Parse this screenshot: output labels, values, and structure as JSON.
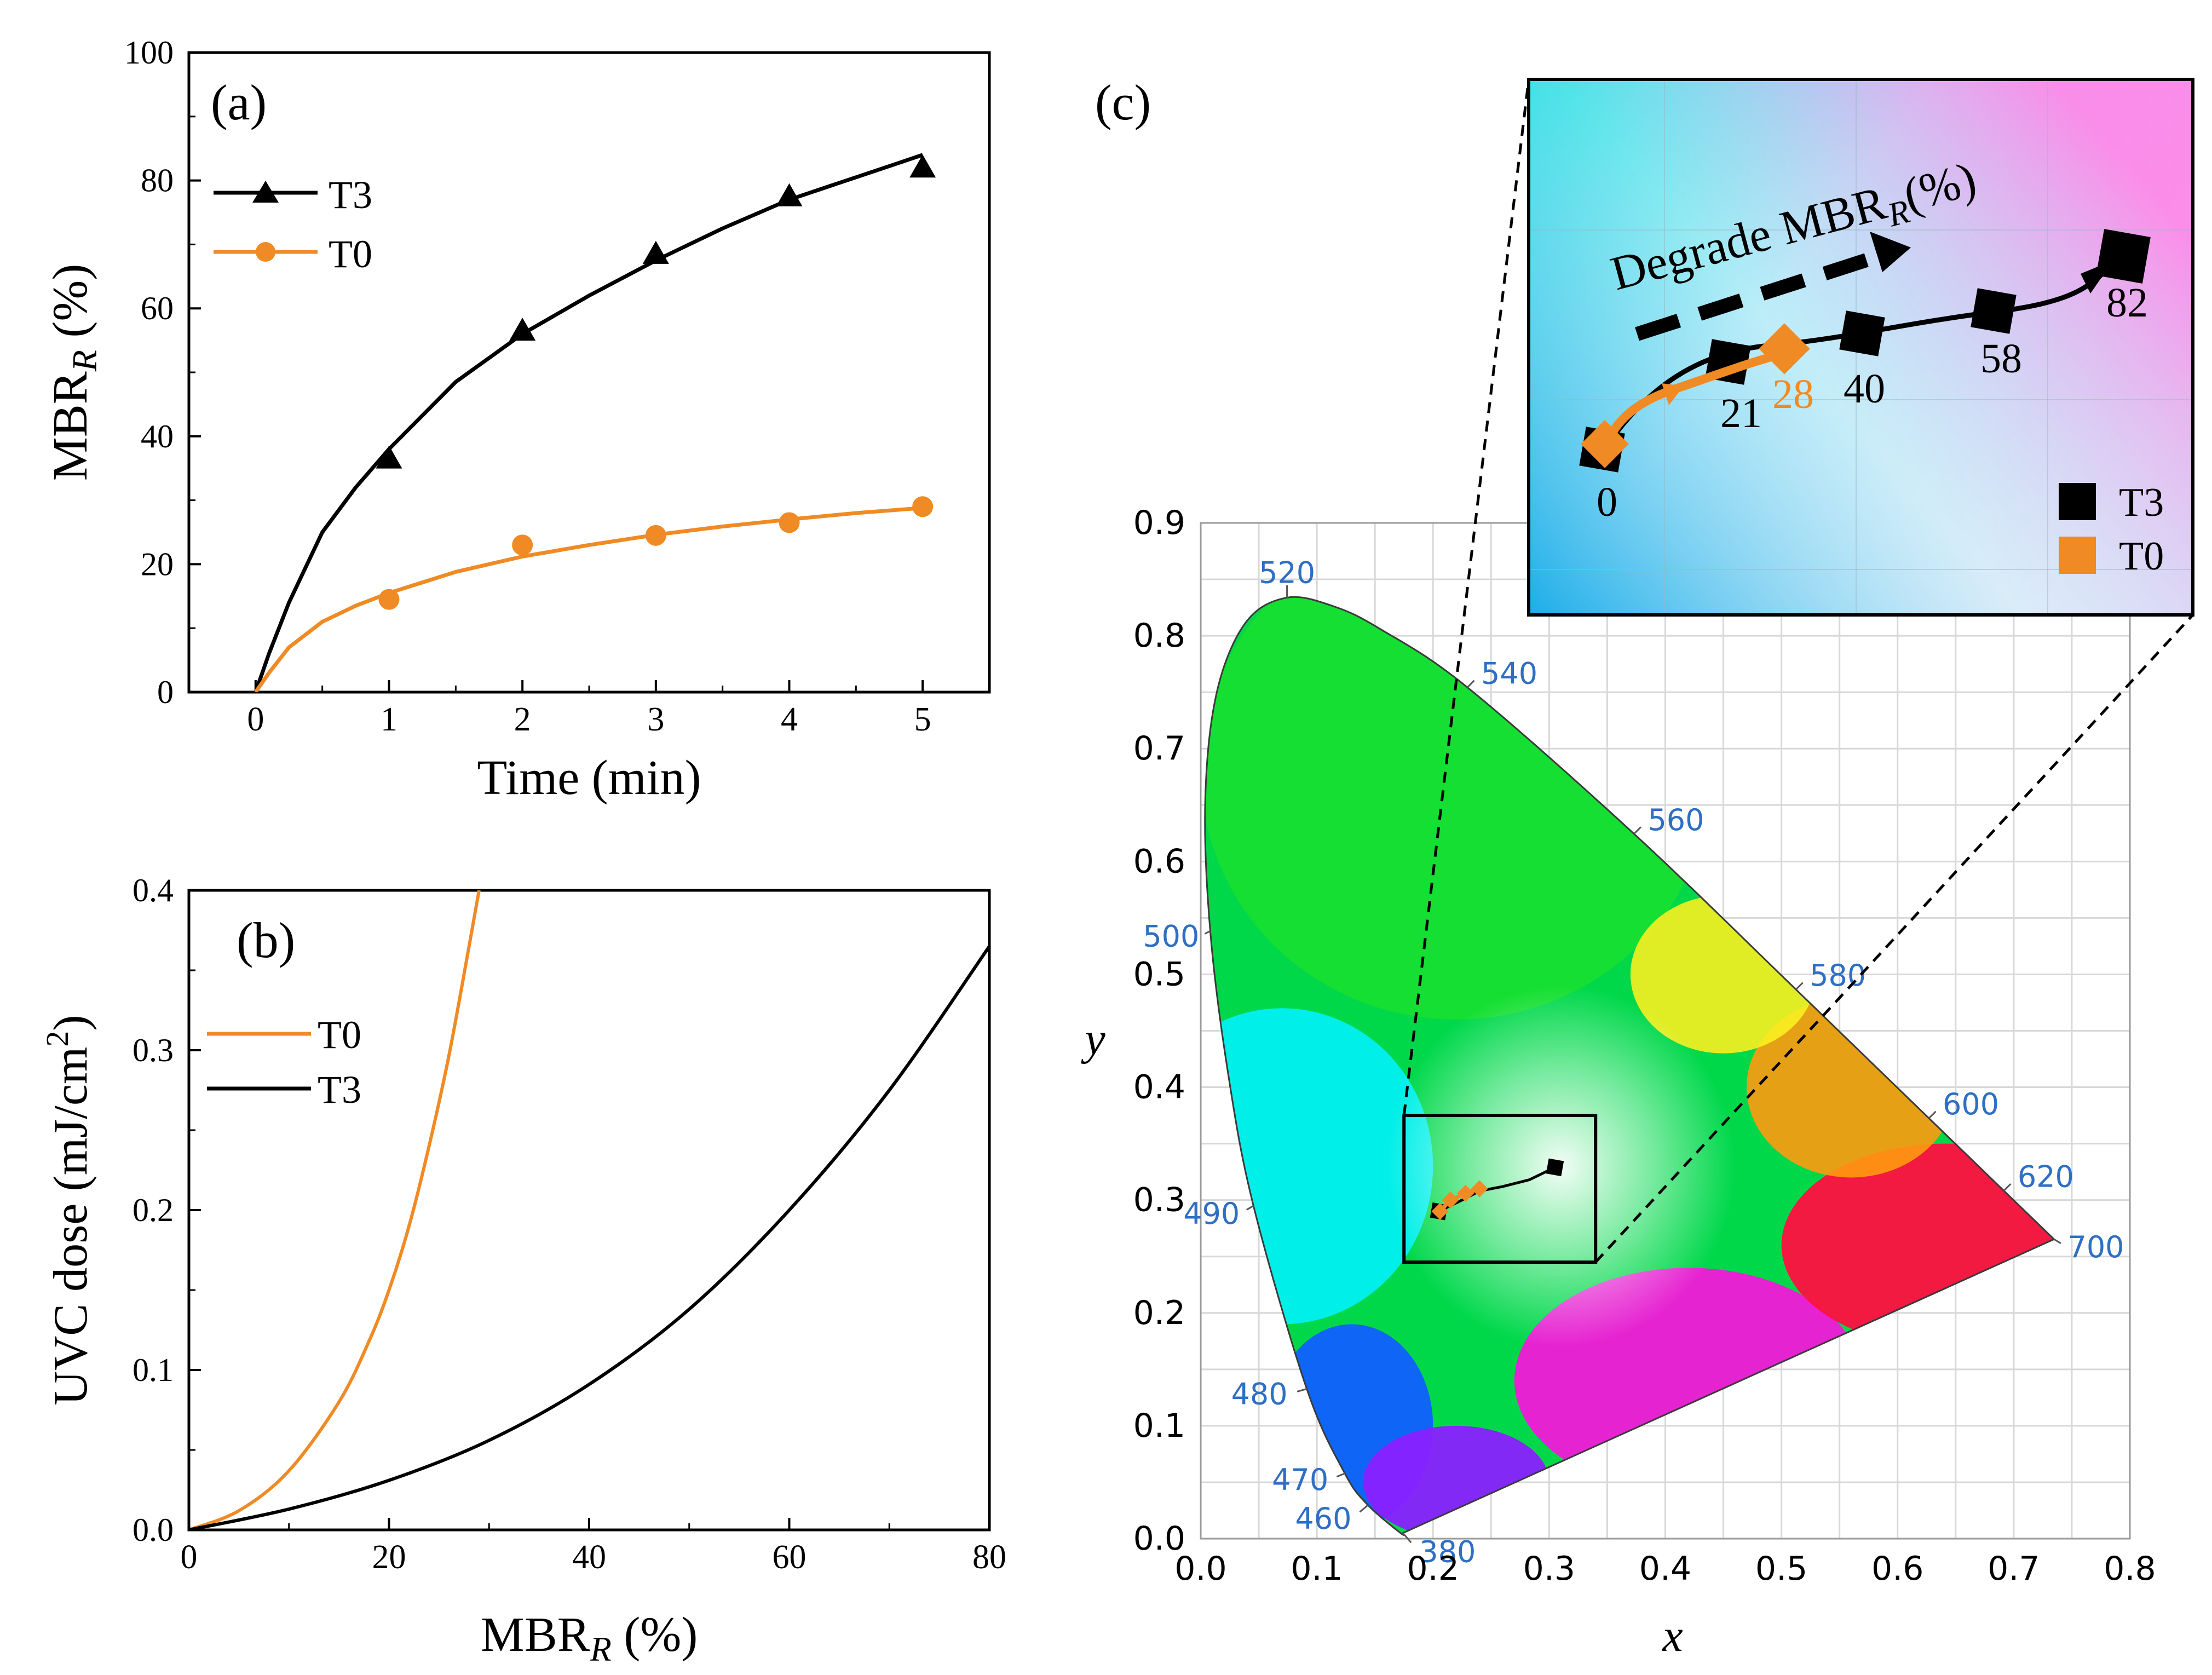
{
  "colors": {
    "t3": "#000000",
    "t0": "#F08A24",
    "wavelength_label": "#2E6FC4"
  },
  "chart_data": [
    {
      "id": "a",
      "type": "line",
      "panel_label": "(a)",
      "xlabel": "Time (min)",
      "ylabel_main": "MBR",
      "ylabel_sub": "R",
      "ylabel_tail": " (%)",
      "xlim": [
        -0.5,
        5.5
      ],
      "ylim": [
        0,
        100
      ],
      "xticks": [
        0,
        1,
        2,
        3,
        4,
        5
      ],
      "yticks": [
        0,
        20,
        40,
        60,
        80,
        100
      ],
      "legend": [
        "T3",
        "T0"
      ],
      "series": [
        {
          "name": "T3",
          "marker": "triangle",
          "x": [
            0,
            1,
            2,
            3,
            4,
            5
          ],
          "y": [
            0,
            36.5,
            56.5,
            68.5,
            77.5,
            82
          ],
          "fit_x": [
            0,
            0.1,
            0.25,
            0.5,
            0.75,
            1,
            1.5,
            2,
            2.5,
            3,
            3.5,
            4,
            4.5,
            5
          ],
          "fit_y": [
            0,
            6,
            14,
            25,
            32,
            38,
            48.5,
            56,
            62,
            67.5,
            72.5,
            77,
            80.5,
            84
          ]
        },
        {
          "name": "T0",
          "marker": "circle",
          "x": [
            0,
            1,
            2,
            3,
            4,
            5
          ],
          "y": [
            0,
            14.5,
            23,
            24.5,
            26.5,
            29
          ],
          "fit_x": [
            0,
            0.1,
            0.25,
            0.5,
            0.75,
            1,
            1.5,
            2,
            2.5,
            3,
            3.5,
            4,
            4.5,
            5
          ],
          "fit_y": [
            0,
            3,
            7,
            11,
            13.5,
            15.5,
            18.8,
            21.2,
            23,
            24.6,
            25.9,
            27,
            28,
            28.8
          ]
        }
      ]
    },
    {
      "id": "b",
      "type": "line",
      "panel_label": "(b)",
      "xlabel_main": "MBR",
      "xlabel_sub": "R",
      "xlabel_tail": " (%)",
      "ylabel_main": "UVC dose (mJ/cm",
      "ylabel_sup": "2",
      "ylabel_tail": ")",
      "xlim": [
        0,
        80
      ],
      "ylim": [
        0,
        0.4
      ],
      "xticks": [
        0,
        20,
        40,
        60,
        80
      ],
      "yticks": [
        0.0,
        0.1,
        0.2,
        0.3,
        0.4
      ],
      "legend": [
        "T0",
        "T3"
      ],
      "series": [
        {
          "name": "T0",
          "x": [
            0,
            5,
            10,
            15,
            18,
            20,
            22,
            24,
            26,
            28,
            29
          ],
          "y": [
            0,
            0.012,
            0.037,
            0.08,
            0.118,
            0.15,
            0.19,
            0.24,
            0.297,
            0.365,
            0.4
          ]
        },
        {
          "name": "T3",
          "x": [
            0,
            10,
            20,
            30,
            40,
            50,
            60,
            70,
            80
          ],
          "y": [
            0,
            0.013,
            0.031,
            0.056,
            0.091,
            0.138,
            0.2,
            0.275,
            0.365
          ]
        }
      ]
    },
    {
      "id": "c",
      "type": "scatter",
      "panel_label": "(c)",
      "xlabel": "x",
      "ylabel": "y",
      "xlim": [
        0,
        0.8
      ],
      "ylim": [
        0,
        0.9
      ],
      "xticks": [
        "0.0",
        "0.1",
        "0.2",
        "0.3",
        "0.4",
        "0.5",
        "0.6",
        "0.7",
        "0.8"
      ],
      "yticks": [
        "0.0",
        "0.1",
        "0.2",
        "0.3",
        "0.4",
        "0.5",
        "0.6",
        "0.7",
        "0.8",
        "0.9"
      ],
      "locus": [
        {
          "nm": "380",
          "x": 0.1741,
          "y": 0.005
        },
        {
          "nm": "",
          "x": 0.172,
          "y": 0.005
        },
        {
          "nm": "460",
          "x": 0.144,
          "y": 0.0297
        },
        {
          "nm": "470",
          "x": 0.1241,
          "y": 0.0578
        },
        {
          "nm": "480",
          "x": 0.0913,
          "y": 0.1327
        },
        {
          "nm": "490",
          "x": 0.0454,
          "y": 0.295
        },
        {
          "nm": "",
          "x": 0.0235,
          "y": 0.4127
        },
        {
          "nm": "500",
          "x": 0.0082,
          "y": 0.5384
        },
        {
          "nm": "",
          "x": 0.0039,
          "y": 0.6548
        },
        {
          "nm": "",
          "x": 0.0139,
          "y": 0.7502
        },
        {
          "nm": "",
          "x": 0.0389,
          "y": 0.812
        },
        {
          "nm": "520",
          "x": 0.0743,
          "y": 0.8338
        },
        {
          "nm": "",
          "x": 0.1142,
          "y": 0.8262
        },
        {
          "nm": "",
          "x": 0.1547,
          "y": 0.8059
        },
        {
          "nm": "540",
          "x": 0.2296,
          "y": 0.7543
        },
        {
          "nm": "560",
          "x": 0.3731,
          "y": 0.6245
        },
        {
          "nm": "580",
          "x": 0.5125,
          "y": 0.4866
        },
        {
          "nm": "600",
          "x": 0.627,
          "y": 0.3725
        },
        {
          "nm": "620",
          "x": 0.6915,
          "y": 0.3083
        },
        {
          "nm": "700",
          "x": 0.7347,
          "y": 0.2653
        }
      ],
      "wavelength_labels": [
        "380",
        "460",
        "470",
        "480",
        "490",
        "500",
        "520",
        "540",
        "560",
        "580",
        "600",
        "620",
        "700"
      ],
      "zoom_box": {
        "x0": 0.175,
        "x1": 0.34,
        "y0": 0.245,
        "y1": 0.375
      },
      "series": [
        {
          "name": "T3",
          "marker": "square",
          "x": [
            0.205,
            0.225,
            0.24,
            0.26,
            0.283,
            0.305
          ],
          "y": [
            0.29,
            0.3,
            0.308,
            0.312,
            0.318,
            0.329
          ],
          "labels": [
            "0",
            "21",
            "",
            "40",
            "58",
            "82"
          ]
        },
        {
          "name": "T0",
          "marker": "diamond",
          "x": [
            0.206,
            0.215,
            0.228,
            0.24
          ],
          "y": [
            0.29,
            0.3,
            0.306,
            0.31
          ],
          "labels": [
            "",
            "",
            "",
            "28"
          ]
        }
      ],
      "inset": {
        "annotation_main": "Degrade MBR",
        "annotation_sub": "R",
        "annotation_tail": "(%)",
        "legend": [
          "T3",
          "T0"
        ],
        "t3_labels": [
          "0",
          "21",
          "40",
          "58",
          "82"
        ],
        "t0_label": "28"
      }
    }
  ]
}
